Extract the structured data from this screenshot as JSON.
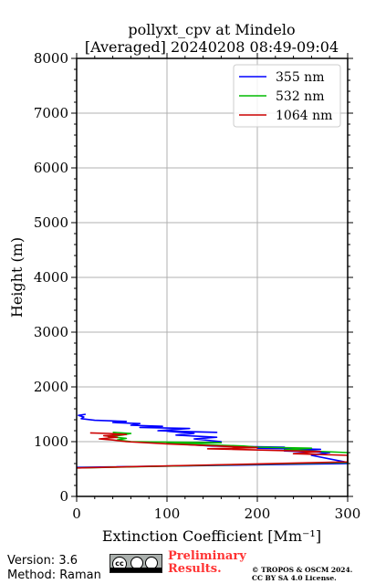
{
  "chart_data": {
    "type": "line",
    "title_line1": "pollyxt_cpv at Mindelo",
    "title_line2": "[Averaged] 20240208 08:49-09:04",
    "xlabel": "Extinction Coefficient [Mm⁻¹]",
    "ylabel": "Height (m)",
    "xlim": [
      0,
      300
    ],
    "ylim": [
      0,
      8000
    ],
    "xticks": [
      0,
      100,
      200,
      300
    ],
    "xtick_labels": [
      "0",
      "100",
      "200",
      "300"
    ],
    "yticks": [
      0,
      1000,
      2000,
      3000,
      4000,
      5000,
      6000,
      7000,
      8000
    ],
    "ytick_labels": [
      "0",
      "1000",
      "2000",
      "3000",
      "4000",
      "5000",
      "6000",
      "7000",
      "8000"
    ],
    "grid": true,
    "legend_position": "top-right",
    "series": [
      {
        "name": "355 nm",
        "color": "#0000ff",
        "points": [
          [
            0,
            530
          ],
          [
            300,
            600
          ],
          [
            300,
            620
          ],
          [
            260,
            750
          ],
          [
            280,
            800
          ],
          [
            230,
            830
          ],
          [
            270,
            860
          ],
          [
            200,
            880
          ],
          [
            230,
            900
          ],
          [
            150,
            920
          ],
          [
            100,
            970
          ],
          [
            160,
            1000
          ],
          [
            130,
            1050
          ],
          [
            155,
            1080
          ],
          [
            110,
            1120
          ],
          [
            130,
            1150
          ],
          [
            100,
            1190
          ],
          [
            155,
            1170
          ],
          [
            90,
            1200
          ],
          [
            125,
            1240
          ],
          [
            70,
            1260
          ],
          [
            95,
            1280
          ],
          [
            60,
            1300
          ],
          [
            70,
            1330
          ],
          [
            40,
            1350
          ],
          [
            55,
            1370
          ],
          [
            20,
            1390
          ],
          [
            5,
            1420
          ],
          [
            8,
            1450
          ],
          [
            2,
            1480
          ],
          [
            10,
            1500
          ]
        ]
      },
      {
        "name": "532 nm",
        "color": "#00bb00",
        "points": [
          [
            0,
            520
          ],
          [
            300,
            620
          ],
          [
            300,
            800
          ],
          [
            230,
            850
          ],
          [
            260,
            880
          ],
          [
            200,
            900
          ],
          [
            185,
            920
          ],
          [
            100,
            970
          ],
          [
            160,
            980
          ],
          [
            60,
            1000
          ],
          [
            45,
            1030
          ],
          [
            55,
            1060
          ],
          [
            35,
            1090
          ],
          [
            50,
            1120
          ],
          [
            60,
            1150
          ],
          [
            40,
            1170
          ]
        ]
      },
      {
        "name": "1064 nm",
        "color": "#cc0000",
        "points": [
          [
            0,
            520
          ],
          [
            300,
            630
          ],
          [
            300,
            750
          ],
          [
            240,
            780
          ],
          [
            270,
            820
          ],
          [
            145,
            870
          ],
          [
            200,
            890
          ],
          [
            100,
            960
          ],
          [
            55,
            1000
          ],
          [
            40,
            1030
          ],
          [
            25,
            1050
          ],
          [
            45,
            1080
          ],
          [
            30,
            1110
          ],
          [
            55,
            1130
          ],
          [
            35,
            1150
          ],
          [
            15,
            1160
          ]
        ]
      }
    ]
  },
  "footer": {
    "version": "Version: 3.6",
    "method": "Method: Raman",
    "prelim_line1": "Preliminary",
    "prelim_line2": "Results.",
    "prelim_color": "#ff3333",
    "copyright_line1": "© TROPOS & OSCM 2024.",
    "copyright_line2": "CC BY SA 4.0 License."
  }
}
